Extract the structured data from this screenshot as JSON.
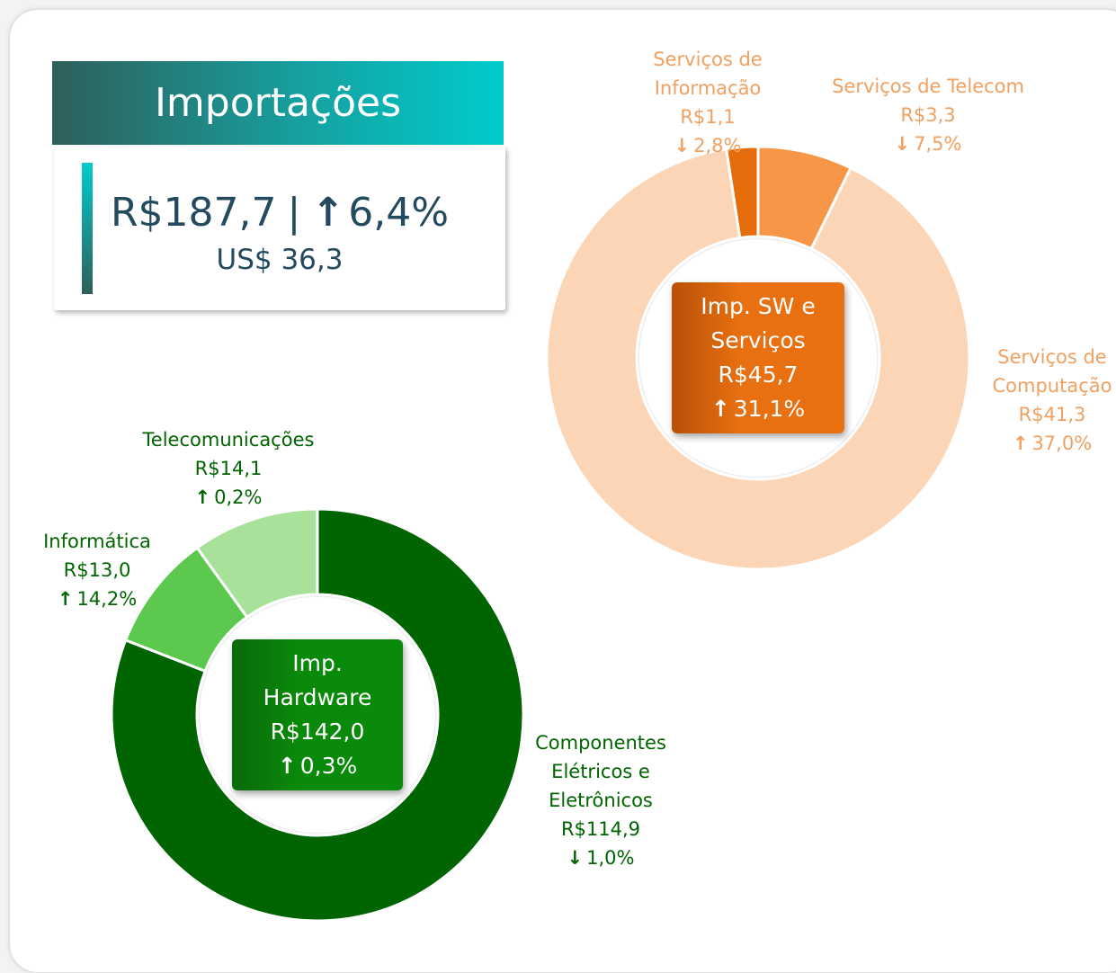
{
  "header": {
    "title": "Importações"
  },
  "summary": {
    "value_label": "R$187,7",
    "change": "6,4%",
    "change_direction": "up",
    "usd_label": "US$ 36,3"
  },
  "chart_data": [
    {
      "type": "donut",
      "center": {
        "title": "Imp. SW e Serviços",
        "value_label": "R$45,7",
        "change": "31,1%",
        "change_direction": "up"
      },
      "categories": [
        "Serviços de Informação",
        "Serviços de Telecom",
        "Serviços de Computação"
      ],
      "values": [
        1.1,
        3.3,
        41.3
      ],
      "value_labels": [
        "R$1,1",
        "R$3,3",
        "R$41,3"
      ],
      "changes": [
        "2,8%",
        "7,5%",
        "37,0%"
      ],
      "change_directions": [
        "down",
        "down",
        "up"
      ],
      "colors": [
        "#e46c0a",
        "#f79646",
        "#fbd5b5"
      ],
      "label_color": "#f0a060",
      "center_color": [
        "#b85008",
        "#e87010"
      ]
    },
    {
      "type": "donut",
      "center": {
        "title": "Imp. Hardware",
        "value_label": "R$142,0",
        "change": "0,3%",
        "change_direction": "up"
      },
      "categories": [
        "Componentes Elétricos e Eletrônicos",
        "Informática",
        "Telecomunicações"
      ],
      "values": [
        114.9,
        13.0,
        14.1
      ],
      "value_labels": [
        "R$114,9",
        "R$13,0",
        "R$14,1"
      ],
      "changes": [
        "1,0%",
        "14,2%",
        "0,2%"
      ],
      "change_directions": [
        "down",
        "up",
        "up"
      ],
      "colors": [
        "#006400",
        "#5cc84e",
        "#a8e29a"
      ],
      "label_color": "#006400",
      "center_color": [
        "#0a6a0a",
        "#0a8a0a"
      ]
    }
  ]
}
